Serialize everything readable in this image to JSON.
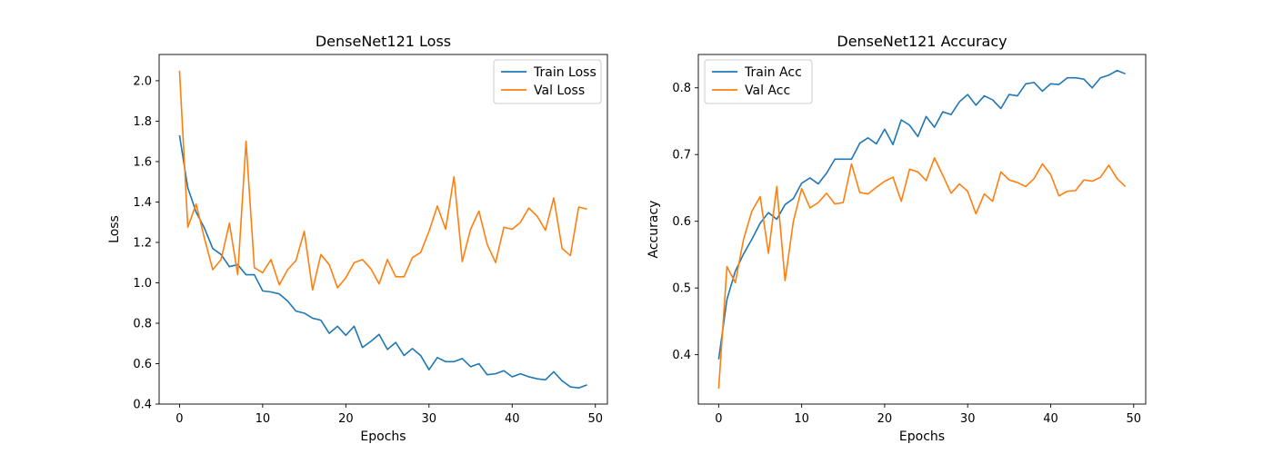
{
  "chart_data": [
    {
      "type": "line",
      "title": "DenseNet121 Loss",
      "xlabel": "Epochs",
      "ylabel": "Loss",
      "xlim": [
        -2.45,
        51.45
      ],
      "ylim": [
        0.4,
        2.13
      ],
      "xticks": [
        0,
        10,
        20,
        30,
        40,
        50
      ],
      "yticks": [
        0.4,
        0.6,
        0.8,
        1.0,
        1.2,
        1.4,
        1.6,
        1.8,
        2.0
      ],
      "grid": false,
      "legend": "top-right",
      "x": [
        0,
        1,
        2,
        3,
        4,
        5,
        6,
        7,
        8,
        9,
        10,
        11,
        12,
        13,
        14,
        15,
        16,
        17,
        18,
        19,
        20,
        21,
        22,
        23,
        24,
        25,
        26,
        27,
        28,
        29,
        30,
        31,
        32,
        33,
        34,
        35,
        36,
        37,
        38,
        39,
        40,
        41,
        42,
        43,
        44,
        45,
        46,
        47,
        48,
        49
      ],
      "series": [
        {
          "name": "Train Loss",
          "color": "#1f77b4",
          "values": [
            1.73,
            1.47,
            1.35,
            1.27,
            1.17,
            1.14,
            1.08,
            1.09,
            1.04,
            1.04,
            0.96,
            0.955,
            0.945,
            0.91,
            0.86,
            0.85,
            0.825,
            0.815,
            0.75,
            0.785,
            0.74,
            0.785,
            0.68,
            0.71,
            0.745,
            0.67,
            0.705,
            0.64,
            0.675,
            0.64,
            0.57,
            0.63,
            0.61,
            0.61,
            0.625,
            0.585,
            0.6,
            0.545,
            0.55,
            0.565,
            0.535,
            0.55,
            0.535,
            0.525,
            0.52,
            0.56,
            0.515,
            0.485,
            0.48,
            0.495
          ]
        },
        {
          "name": "Val Loss",
          "color": "#ff7f0e",
          "values": [
            2.05,
            1.275,
            1.39,
            1.22,
            1.065,
            1.115,
            1.295,
            1.04,
            1.7,
            1.075,
            1.05,
            1.115,
            0.99,
            1.065,
            1.11,
            1.255,
            0.965,
            1.14,
            1.09,
            0.975,
            1.025,
            1.1,
            1.115,
            1.07,
            0.995,
            1.115,
            1.03,
            1.03,
            1.125,
            1.15,
            1.255,
            1.38,
            1.265,
            1.525,
            1.105,
            1.265,
            1.355,
            1.19,
            1.1,
            1.275,
            1.265,
            1.3,
            1.37,
            1.33,
            1.26,
            1.42,
            1.17,
            1.135,
            1.375,
            1.365
          ]
        }
      ]
    },
    {
      "type": "line",
      "title": "DenseNet121 Accuracy",
      "xlabel": "Epochs",
      "ylabel": "Accuracy",
      "xlim": [
        -2.45,
        51.45
      ],
      "ylim": [
        0.326,
        0.85
      ],
      "xticks": [
        0,
        10,
        20,
        30,
        40,
        50
      ],
      "yticks": [
        0.4,
        0.5,
        0.6,
        0.7,
        0.8
      ],
      "grid": false,
      "legend": "top-left",
      "x": [
        0,
        1,
        2,
        3,
        4,
        5,
        6,
        7,
        8,
        9,
        10,
        11,
        12,
        13,
        14,
        15,
        16,
        17,
        18,
        19,
        20,
        21,
        22,
        23,
        24,
        25,
        26,
        27,
        28,
        29,
        30,
        31,
        32,
        33,
        34,
        35,
        36,
        37,
        38,
        39,
        40,
        41,
        42,
        43,
        44,
        45,
        46,
        47,
        48,
        49
      ],
      "series": [
        {
          "name": "Train Acc",
          "color": "#1f77b4",
          "values": [
            0.393,
            0.483,
            0.525,
            0.551,
            0.573,
            0.597,
            0.613,
            0.603,
            0.625,
            0.634,
            0.657,
            0.665,
            0.656,
            0.672,
            0.693,
            0.693,
            0.693,
            0.717,
            0.725,
            0.716,
            0.738,
            0.715,
            0.752,
            0.744,
            0.727,
            0.757,
            0.741,
            0.764,
            0.76,
            0.779,
            0.79,
            0.774,
            0.788,
            0.782,
            0.769,
            0.79,
            0.788,
            0.806,
            0.808,
            0.795,
            0.806,
            0.805,
            0.815,
            0.815,
            0.813,
            0.8,
            0.815,
            0.819,
            0.826,
            0.821
          ]
        },
        {
          "name": "Val Acc",
          "color": "#ff7f0e",
          "values": [
            0.349,
            0.532,
            0.508,
            0.573,
            0.615,
            0.637,
            0.552,
            0.652,
            0.511,
            0.6,
            0.649,
            0.62,
            0.628,
            0.642,
            0.626,
            0.628,
            0.686,
            0.643,
            0.641,
            0.651,
            0.66,
            0.666,
            0.63,
            0.678,
            0.674,
            0.661,
            0.695,
            0.669,
            0.642,
            0.656,
            0.645,
            0.611,
            0.641,
            0.63,
            0.674,
            0.662,
            0.658,
            0.652,
            0.664,
            0.686,
            0.67,
            0.638,
            0.645,
            0.646,
            0.662,
            0.66,
            0.666,
            0.684,
            0.664,
            0.652
          ]
        }
      ]
    }
  ]
}
